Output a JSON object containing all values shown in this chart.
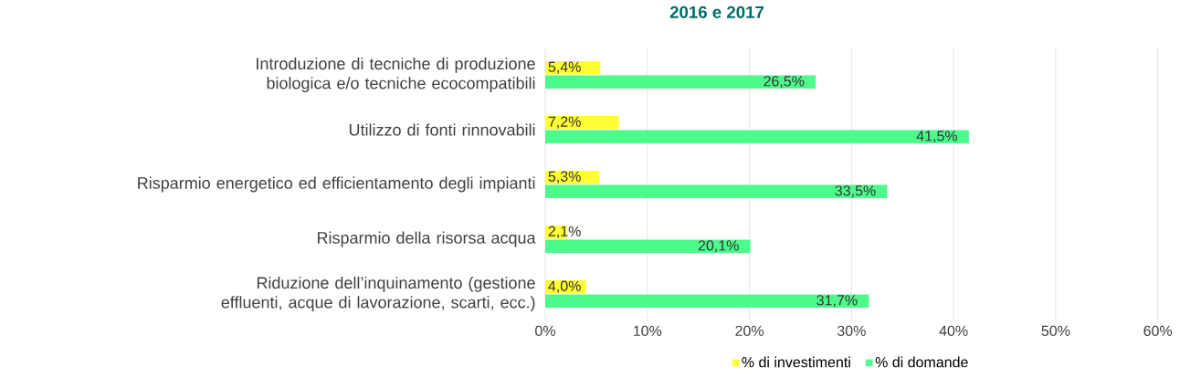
{
  "chart_data": {
    "type": "bar",
    "orientation": "horizontal",
    "title": "2016 e 2017",
    "categories": [
      "Introduzione di tecniche di produzione biologica e/o tecniche ecocompatibili",
      "Utilizzo di fonti rinnovabili",
      "Risparmio energetico ed efficientamento degli impianti",
      "Risparmio della risorsa acqua",
      "Riduzione dell’inquinamento (gestione effluenti, acque di lavorazione, scarti, ecc.)"
    ],
    "series": [
      {
        "name": "% di investimenti",
        "color": "#ffff33",
        "values": [
          5.4,
          7.2,
          5.3,
          2.1,
          4.0
        ],
        "value_labels": [
          "5,4%",
          "7,2%",
          "5,3%",
          "2,1%",
          "4,0%"
        ]
      },
      {
        "name": "% di domande",
        "color": "#4dfa8c",
        "values": [
          26.5,
          41.5,
          33.5,
          20.1,
          31.7
        ],
        "value_labels": [
          "26,5%",
          "41,5%",
          "33,5%",
          "20,1%",
          "31,7%"
        ]
      }
    ],
    "xlim": [
      0,
      60
    ],
    "xticks": [
      {
        "value": 0,
        "label": "0%"
      },
      {
        "value": 10,
        "label": "10%"
      },
      {
        "value": 20,
        "label": "20%"
      },
      {
        "value": 30,
        "label": "30%"
      },
      {
        "value": 40,
        "label": "40%"
      },
      {
        "value": 50,
        "label": "50%"
      },
      {
        "value": 60,
        "label": "60%"
      }
    ],
    "grid": "x",
    "legend": "bottom"
  }
}
